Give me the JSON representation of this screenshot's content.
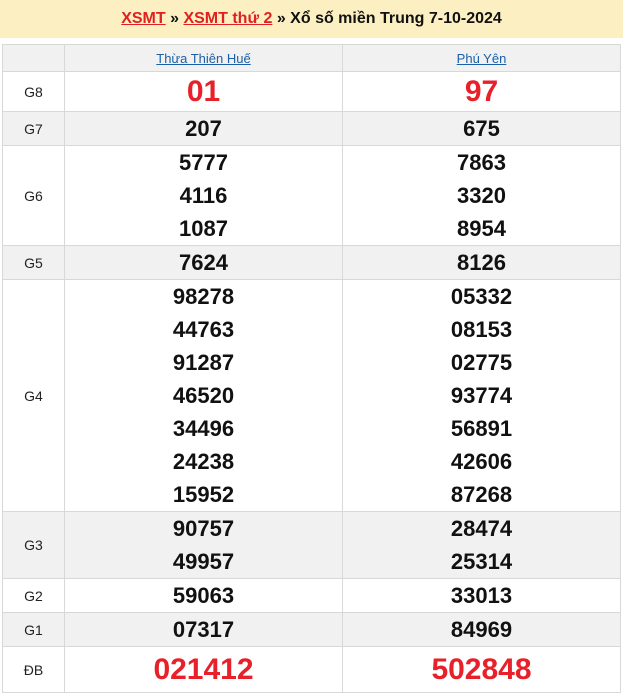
{
  "header": {
    "link1": "XSMT",
    "sep1": " » ",
    "link2": "XSMT thứ 2",
    "sep2": " » ",
    "text": "Xổ số miền Trung 7-10-2024"
  },
  "provinces": [
    "Thừa Thiên Huế",
    "Phú Yên"
  ],
  "rows": [
    {
      "label": "G8",
      "a": [
        "01"
      ],
      "b": [
        "97"
      ]
    },
    {
      "label": "G7",
      "a": [
        "207"
      ],
      "b": [
        "675"
      ]
    },
    {
      "label": "G6",
      "a": [
        "5777",
        "4116",
        "1087"
      ],
      "b": [
        "7863",
        "3320",
        "8954"
      ]
    },
    {
      "label": "G5",
      "a": [
        "7624"
      ],
      "b": [
        "8126"
      ]
    },
    {
      "label": "G4",
      "a": [
        "98278",
        "44763",
        "91287",
        "46520",
        "34496",
        "24238",
        "15952"
      ],
      "b": [
        "05332",
        "08153",
        "02775",
        "93774",
        "56891",
        "42606",
        "87268"
      ]
    },
    {
      "label": "G3",
      "a": [
        "90757",
        "49957"
      ],
      "b": [
        "28474",
        "25314"
      ]
    },
    {
      "label": "G2",
      "a": [
        "59063"
      ],
      "b": [
        "33013"
      ]
    },
    {
      "label": "G1",
      "a": [
        "07317"
      ],
      "b": [
        "84969"
      ]
    },
    {
      "label": "ĐB",
      "a": [
        "021412"
      ],
      "b": [
        "502848"
      ]
    }
  ],
  "colors": {
    "accent": "#e8202a",
    "link": "#1b5fa8",
    "header_bg": "#fcf0c2"
  }
}
